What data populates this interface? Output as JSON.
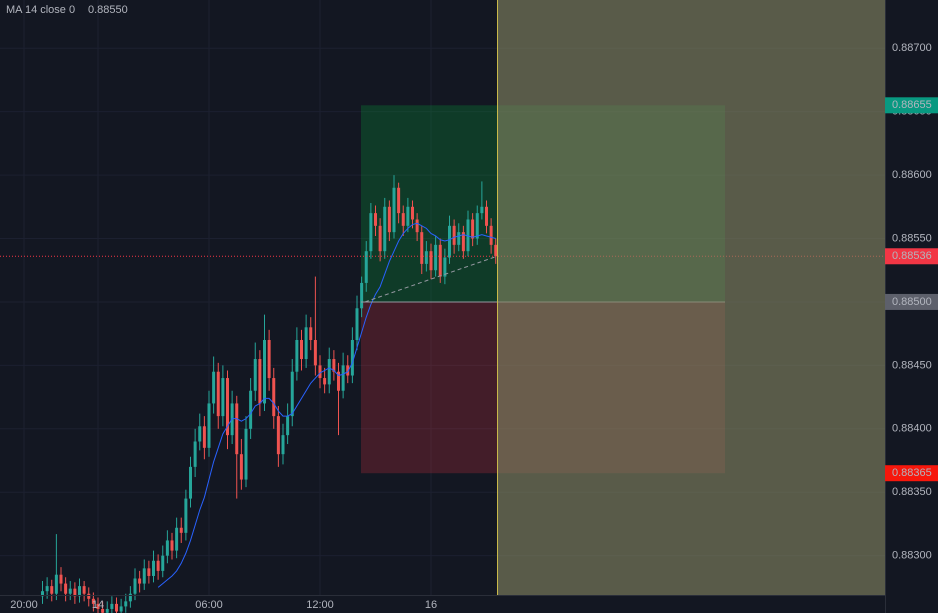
{
  "chart_data": {
    "type": "candlestick",
    "up_color": "#26a69a",
    "down_color": "#ef5350",
    "grid": true,
    "ylim": [
      0.88269,
      0.88738
    ],
    "yticks": [
      {
        "value": 0.883,
        "label": "0.88300"
      },
      {
        "value": 0.8835,
        "label": "0.88350"
      },
      {
        "value": 0.884,
        "label": "0.88400"
      },
      {
        "value": 0.8845,
        "label": "0.88450"
      },
      {
        "value": 0.885,
        "label": "0.88500"
      },
      {
        "value": 0.8855,
        "label": "0.88550"
      },
      {
        "value": 0.886,
        "label": "0.88600"
      },
      {
        "value": 0.8865,
        "label": "0.88650"
      },
      {
        "value": 0.887,
        "label": "0.88700"
      }
    ],
    "categories": [
      "20:00",
      null,
      null,
      null,
      null,
      null,
      null,
      null,
      null,
      null,
      null,
      null,
      null,
      null,
      null,
      null,
      "14",
      null,
      null,
      null,
      null,
      null,
      null,
      null,
      null,
      null,
      null,
      null,
      null,
      null,
      null,
      null,
      null,
      null,
      null,
      null,
      null,
      null,
      null,
      null,
      "06:00",
      null,
      null,
      null,
      null,
      null,
      null,
      null,
      null,
      null,
      null,
      null,
      null,
      null,
      null,
      null,
      null,
      null,
      null,
      null,
      null,
      null,
      null,
      null,
      "12:00",
      null,
      null,
      null,
      null,
      null,
      null,
      null,
      null,
      null,
      null,
      null,
      null,
      null,
      null,
      null,
      null,
      null,
      null,
      null,
      null,
      null,
      null,
      null,
      "16",
      null,
      null,
      null,
      null,
      null,
      null,
      null,
      null,
      null,
      null,
      null,
      null,
      null,
      null
    ],
    "open": [
      null,
      null,
      null,
      null,
      0.88268,
      0.88272,
      0.88276,
      0.8827,
      0.88285,
      0.88278,
      0.8827,
      0.88274,
      0.88268,
      0.88276,
      0.8827,
      0.88266,
      0.88262,
      0.88258,
      0.88255,
      0.88258,
      0.88262,
      0.88256,
      0.8826,
      0.88264,
      0.8827,
      0.88282,
      0.88278,
      0.8829,
      0.88284,
      0.88296,
      0.88288,
      0.883,
      0.88312,
      0.88304,
      0.88322,
      0.88318,
      0.88345,
      0.8837,
      0.8839,
      0.88402,
      0.88385,
      0.8842,
      0.88445,
      0.8841,
      0.8844,
      0.88395,
      0.8842,
      0.8838,
      0.8836,
      0.884,
      0.8843,
      0.88455,
      0.8842,
      0.8847,
      0.8844,
      0.8841,
      0.8838,
      0.88395,
      0.8841,
      0.88445,
      0.8847,
      0.88455,
      0.8848,
      0.8847,
      0.8845,
      0.8844,
      0.88435,
      0.88455,
      0.88445,
      0.8843,
      0.8845,
      0.88442,
      0.8847,
      0.88495,
      0.88515,
      0.8854,
      0.8857,
      0.8856,
      0.8854,
      0.88575,
      0.88555,
      0.8859,
      0.8857,
      0.8856,
      0.88575,
      0.88565,
      0.88555,
      0.8853,
      0.8854,
      0.88525,
      0.88545,
      0.8852,
      0.88535,
      0.8856,
      0.88545,
      0.88555,
      0.8854,
      0.88565,
      0.8855,
      0.8857,
      0.88575,
      0.8856,
      0.88545
    ],
    "high": [
      null,
      null,
      null,
      null,
      0.8828,
      0.88283,
      0.88281,
      0.88317,
      0.88291,
      0.88283,
      0.8828,
      0.88279,
      0.88282,
      0.8828,
      0.88275,
      0.88271,
      0.88267,
      0.88264,
      0.88264,
      0.88268,
      0.88267,
      0.88266,
      0.8827,
      0.88276,
      0.8829,
      0.88288,
      0.88297,
      0.88296,
      0.88304,
      0.88301,
      0.88308,
      0.8832,
      0.88318,
      0.8833,
      0.8833,
      0.88352,
      0.88378,
      0.884,
      0.88412,
      0.8841,
      0.8843,
      0.88457,
      0.88452,
      0.8845,
      0.88446,
      0.8843,
      0.88426,
      0.88392,
      0.8841,
      0.8844,
      0.88468,
      0.88462,
      0.8849,
      0.88478,
      0.88448,
      0.88418,
      0.88404,
      0.8842,
      0.88455,
      0.8848,
      0.88478,
      0.8849,
      0.88488,
      0.8852,
      0.88458,
      0.88448,
      0.88464,
      0.88462,
      0.88452,
      0.8846,
      0.88458,
      0.8848,
      0.88505,
      0.8852,
      0.88548,
      0.88578,
      0.88576,
      0.88566,
      0.88582,
      0.8858,
      0.886,
      0.88594,
      0.88576,
      0.88582,
      0.8858,
      0.8857,
      0.8856,
      0.88548,
      0.88546,
      0.88552,
      0.8855,
      0.88542,
      0.88568,
      0.88565,
      0.88562,
      0.8856,
      0.88572,
      0.8857,
      0.88576,
      0.88595,
      0.8858,
      0.88566,
      0.8855
    ],
    "low": [
      null,
      null,
      null,
      null,
      0.88262,
      0.88266,
      0.88264,
      0.88265,
      0.88272,
      0.88264,
      0.88265,
      0.88262,
      0.88263,
      0.88264,
      0.8826,
      0.88256,
      0.88252,
      0.8825,
      0.8825,
      0.88253,
      0.8825,
      0.88251,
      0.88255,
      0.88259,
      0.88265,
      0.88271,
      0.88273,
      0.88278,
      0.88279,
      0.88281,
      0.88283,
      0.88294,
      0.88297,
      0.88298,
      0.8831,
      0.88312,
      0.88338,
      0.88362,
      0.88383,
      0.88376,
      0.88378,
      0.88412,
      0.884,
      0.88402,
      0.88384,
      0.88388,
      0.88345,
      0.88352,
      0.88354,
      0.88392,
      0.88422,
      0.8841,
      0.88414,
      0.8843,
      0.884,
      0.8837,
      0.88372,
      0.88388,
      0.88402,
      0.88438,
      0.88446,
      0.88448,
      0.88462,
      0.88442,
      0.88432,
      0.88428,
      0.88428,
      0.88438,
      0.88395,
      0.88424,
      0.88436,
      0.88436,
      0.88462,
      0.88488,
      0.88508,
      0.88534,
      0.88552,
      0.88532,
      0.88534,
      0.88548,
      0.8855,
      0.88562,
      0.88552,
      0.88555,
      0.88558,
      0.88548,
      0.88522,
      0.88524,
      0.88518,
      0.8852,
      0.88515,
      0.88514,
      0.8853,
      0.88538,
      0.8854,
      0.88534,
      0.88536,
      0.88544,
      0.88545,
      0.88565,
      0.88554,
      0.88538,
      0.8853
    ],
    "close": [
      null,
      null,
      null,
      null,
      0.88272,
      0.88276,
      0.8827,
      0.88285,
      0.88278,
      0.8827,
      0.88274,
      0.88268,
      0.88276,
      0.8827,
      0.88266,
      0.88262,
      0.88258,
      0.88255,
      0.88258,
      0.88262,
      0.88256,
      0.8826,
      0.88264,
      0.8827,
      0.88282,
      0.88278,
      0.8829,
      0.88284,
      0.88296,
      0.88288,
      0.883,
      0.88312,
      0.88304,
      0.88322,
      0.88318,
      0.88345,
      0.8837,
      0.8839,
      0.88402,
      0.88385,
      0.8842,
      0.88445,
      0.8841,
      0.8844,
      0.88395,
      0.8842,
      0.8838,
      0.8836,
      0.884,
      0.8843,
      0.88455,
      0.8842,
      0.8847,
      0.8844,
      0.8841,
      0.8838,
      0.88395,
      0.8841,
      0.88445,
      0.8847,
      0.88455,
      0.8848,
      0.8847,
      0.8845,
      0.8844,
      0.88435,
      0.88455,
      0.88445,
      0.8843,
      0.8845,
      0.88442,
      0.8847,
      0.88495,
      0.88515,
      0.8854,
      0.8857,
      0.8856,
      0.8854,
      0.88575,
      0.88555,
      0.8859,
      0.8857,
      0.8856,
      0.88575,
      0.88565,
      0.88555,
      0.8853,
      0.8854,
      0.88525,
      0.88545,
      0.8852,
      0.88535,
      0.8856,
      0.88545,
      0.88555,
      0.8854,
      0.88565,
      0.8855,
      0.8857,
      0.88575,
      0.8856,
      0.88545,
      0.88536
    ],
    "indicator": {
      "name": "MA 14 close 0",
      "color": "#2962ff",
      "last": {
        "value": 0.8855,
        "label": "0.88550"
      },
      "values": [
        null,
        null,
        null,
        null,
        null,
        null,
        null,
        null,
        null,
        null,
        null,
        null,
        null,
        null,
        null,
        null,
        null,
        null,
        null,
        null,
        null,
        null,
        null,
        null,
        null,
        null,
        null,
        null,
        null,
        0.88275,
        0.88278,
        0.88281,
        0.88284,
        0.88288,
        0.88294,
        0.88302,
        0.88312,
        0.88324,
        0.88336,
        0.88346,
        0.8836,
        0.88374,
        0.88385,
        0.88396,
        0.88402,
        0.88408,
        0.88408,
        0.88406,
        0.88408,
        0.88412,
        0.88418,
        0.8842,
        0.88424,
        0.88424,
        0.8842,
        0.88414,
        0.8841,
        0.8841,
        0.88412,
        0.88418,
        0.88424,
        0.8843,
        0.88436,
        0.8844,
        0.88444,
        0.88446,
        0.88448,
        0.88446,
        0.88442,
        0.88443,
        0.88445,
        0.88452,
        0.88464,
        0.88476,
        0.88488,
        0.88498,
        0.88506,
        0.88512,
        0.88522,
        0.88532,
        0.8854,
        0.88548,
        0.88554,
        0.88558,
        0.88561,
        0.88562,
        0.8856,
        0.88558,
        0.88554,
        0.88552,
        0.88549,
        0.88548,
        0.88549,
        0.88551,
        0.88552,
        0.88553,
        0.88552,
        0.88551,
        0.88552,
        0.88553,
        0.88552,
        0.88551,
        0.8855
      ]
    },
    "last_price": {
      "value": 0.88536,
      "label": "0.88536"
    },
    "position": {
      "entry": {
        "value": 0.885,
        "label": "0.88500"
      },
      "target": {
        "value": 0.88655,
        "label": "0.88655"
      },
      "stop": {
        "value": 0.88365,
        "label": "0.88365"
      }
    }
  }
}
